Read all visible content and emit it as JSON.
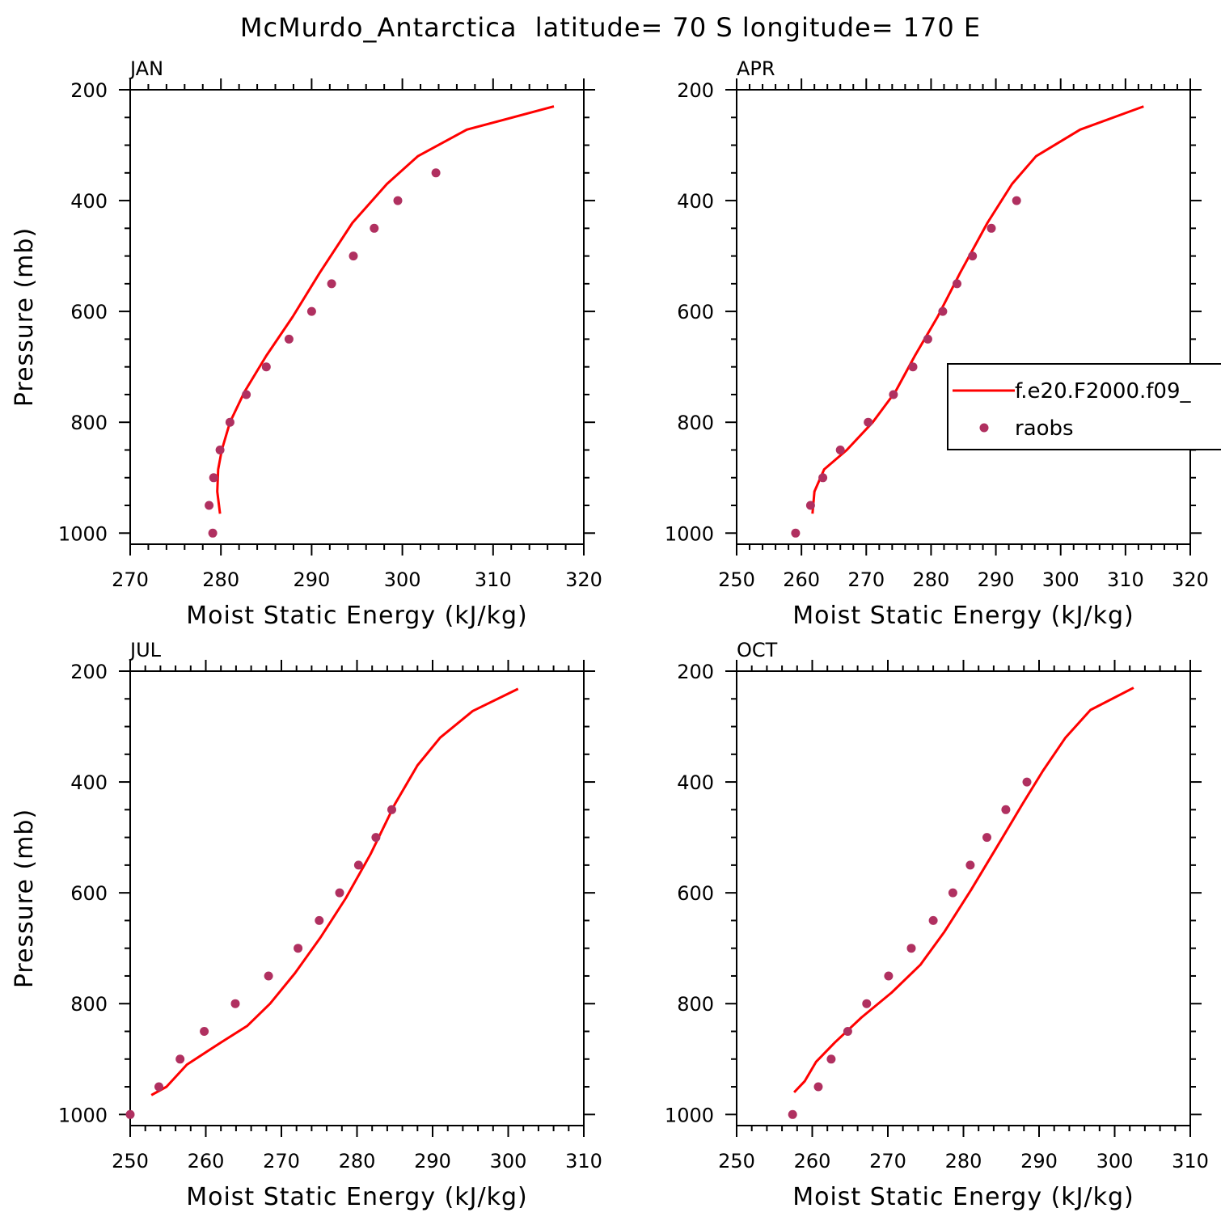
{
  "figure": {
    "title": "McMurdo_Antarctica  latitude= 70 S longitude= 170 E"
  },
  "legend": {
    "entries": [
      "f.e20.F2000.f09_",
      "raobs"
    ],
    "placement": "right of APR panel (clipped at figure edge)"
  },
  "colors": {
    "model_line": "#ff0000",
    "raobs_marker": "#b03060",
    "axes": "#000000"
  },
  "chart_data": [
    {
      "type": "line",
      "panel_title": "JAN",
      "xlabel": "Moist Static Energy (kJ/kg)",
      "ylabel": "Pressure (mb)",
      "xlim": [
        270,
        320
      ],
      "xticks": [
        270,
        280,
        290,
        300,
        310,
        320
      ],
      "ylim": [
        1020,
        200
      ],
      "yticks": [
        200,
        400,
        600,
        800,
        1000
      ],
      "y_inverted": true,
      "series": [
        {
          "name": "f.e20.F2000.f09_",
          "style": "line",
          "x": [
            279.9,
            279.6,
            279.7,
            280.1,
            281.0,
            282.6,
            285.0,
            287.9,
            290.9,
            294.5,
            298.3,
            301.7,
            307.1,
            316.7
          ],
          "y": [
            965,
            925,
            885,
            850,
            800,
            745,
            680,
            610,
            530,
            440,
            370,
            320,
            272,
            230
          ]
        },
        {
          "name": "raobs",
          "style": "markers",
          "x": [
            279.1,
            278.7,
            279.2,
            279.9,
            281.0,
            282.8,
            285.0,
            287.5,
            290.0,
            292.2,
            294.6,
            296.9,
            299.5,
            303.7
          ],
          "y": [
            1000,
            950,
            900,
            850,
            800,
            750,
            700,
            650,
            600,
            550,
            500,
            450,
            400,
            350
          ]
        }
      ]
    },
    {
      "type": "line",
      "panel_title": "APR",
      "xlabel": "Moist Static Energy (kJ/kg)",
      "ylabel": "",
      "xlim": [
        250,
        320
      ],
      "xticks": [
        250,
        260,
        270,
        280,
        290,
        300,
        310,
        320
      ],
      "ylim": [
        1020,
        200
      ],
      "yticks": [
        200,
        400,
        600,
        800,
        1000
      ],
      "y_inverted": true,
      "series": [
        {
          "name": "f.e20.F2000.f09_",
          "style": "line",
          "x": [
            261.7,
            262.0,
            263.5,
            267.0,
            271.0,
            274.5,
            277.5,
            281.0,
            284.5,
            288.7,
            292.5,
            296.2,
            303.0,
            312.8
          ],
          "y": [
            965,
            925,
            885,
            850,
            800,
            745,
            680,
            610,
            530,
            440,
            370,
            320,
            272,
            230
          ]
        },
        {
          "name": "raobs",
          "style": "markers",
          "x": [
            259.1,
            261.4,
            263.3,
            266.0,
            270.3,
            274.2,
            277.2,
            279.5,
            281.8,
            284.0,
            286.4,
            289.3,
            293.2
          ],
          "y": [
            1000,
            950,
            900,
            850,
            800,
            750,
            700,
            650,
            600,
            550,
            500,
            450,
            400
          ]
        }
      ]
    },
    {
      "type": "line",
      "panel_title": "JUL",
      "xlabel": "Moist Static Energy (kJ/kg)",
      "ylabel": "Pressure (mb)",
      "xlim": [
        250,
        310
      ],
      "xticks": [
        250,
        260,
        270,
        280,
        290,
        300,
        310
      ],
      "ylim": [
        1020,
        200
      ],
      "yticks": [
        200,
        400,
        600,
        800,
        1000
      ],
      "y_inverted": true,
      "series": [
        {
          "name": "f.e20.F2000.f09_",
          "style": "line",
          "x": [
            252.8,
            254.8,
            257.5,
            262.0,
            265.5,
            268.5,
            271.8,
            275.2,
            278.5,
            281.8,
            285.0,
            288.0,
            291.0,
            295.3,
            301.3
          ],
          "y": [
            965,
            950,
            910,
            870,
            840,
            800,
            745,
            680,
            610,
            530,
            440,
            370,
            320,
            272,
            232
          ]
        },
        {
          "name": "raobs",
          "style": "markers",
          "x": [
            250.0,
            253.8,
            256.6,
            259.8,
            263.9,
            268.3,
            272.2,
            275.0,
            277.7,
            280.2,
            282.5,
            284.6
          ],
          "y": [
            1000,
            950,
            900,
            850,
            800,
            750,
            700,
            650,
            600,
            550,
            500,
            450
          ]
        }
      ]
    },
    {
      "type": "line",
      "panel_title": "OCT",
      "xlabel": "Moist Static Energy (kJ/kg)",
      "ylabel": "",
      "xlim": [
        250,
        310
      ],
      "xticks": [
        250,
        260,
        270,
        280,
        290,
        300,
        310
      ],
      "ylim": [
        1020,
        200
      ],
      "yticks": [
        200,
        400,
        600,
        800,
        1000
      ],
      "y_inverted": true,
      "series": [
        {
          "name": "f.e20.F2000.f09_",
          "style": "line",
          "x": [
            257.6,
            259.0,
            260.5,
            263.0,
            266.5,
            270.5,
            274.3,
            277.5,
            281.0,
            284.3,
            287.8,
            290.5,
            293.5,
            296.8,
            302.5
          ],
          "y": [
            960,
            940,
            905,
            870,
            825,
            780,
            730,
            670,
            595,
            520,
            440,
            380,
            320,
            270,
            230
          ]
        },
        {
          "name": "raobs",
          "style": "markers",
          "x": [
            257.4,
            260.8,
            262.5,
            264.7,
            267.2,
            270.1,
            273.1,
            276.0,
            278.6,
            280.9,
            283.1,
            285.6,
            288.4
          ],
          "y": [
            1000,
            950,
            900,
            850,
            800,
            750,
            700,
            650,
            600,
            550,
            500,
            450,
            400
          ]
        }
      ]
    }
  ]
}
